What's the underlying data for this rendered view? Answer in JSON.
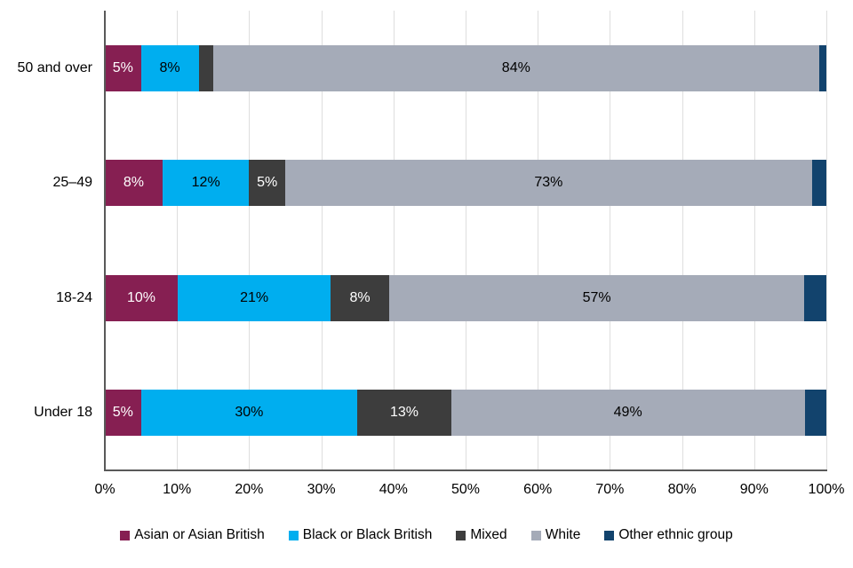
{
  "chart_data": {
    "type": "bar",
    "orientation": "horizontal",
    "stacked": true,
    "title": "",
    "xlabel": "",
    "ylabel": "",
    "xlim": [
      0,
      100
    ],
    "x_ticks": [
      "0%",
      "10%",
      "20%",
      "30%",
      "40%",
      "50%",
      "60%",
      "70%",
      "80%",
      "90%",
      "100%"
    ],
    "grid": "vertical-gridlines",
    "legend_position": "bottom",
    "categories": [
      "50 and over",
      "25–49",
      "18-24",
      "Under 18"
    ],
    "series": [
      {
        "name": "Asian or Asian British",
        "color": "#861F52",
        "label_color": "#FFFFFF",
        "values": [
          5,
          8,
          10,
          5
        ],
        "labels": [
          "5%",
          "8%",
          "10%",
          "5%"
        ]
      },
      {
        "name": "Black or Black British",
        "color": "#00AEEF",
        "label_color": "#000000",
        "values": [
          8,
          12,
          21,
          30
        ],
        "labels": [
          "8%",
          "12%",
          "21%",
          "30%"
        ]
      },
      {
        "name": "Mixed",
        "color": "#3D3D3D",
        "label_color": "#FFFFFF",
        "values": [
          2,
          5,
          8,
          13
        ],
        "labels": [
          "",
          "5%",
          "8%",
          "13%"
        ]
      },
      {
        "name": "White",
        "color": "#A5ABB8",
        "label_color": "#000000",
        "values": [
          84,
          73,
          57,
          49
        ],
        "labels": [
          "84%",
          "73%",
          "57%",
          "49%"
        ]
      },
      {
        "name": "Other ethnic group",
        "color": "#12436D",
        "label_color": "#FFFFFF",
        "values": [
          1,
          2,
          3,
          3
        ],
        "labels": [
          "",
          "",
          "",
          ""
        ]
      }
    ]
  },
  "colors": {
    "gridline": "#DEDEDE",
    "axis_line": "#595959",
    "text": "#000000",
    "background": "#FFFFFF"
  }
}
